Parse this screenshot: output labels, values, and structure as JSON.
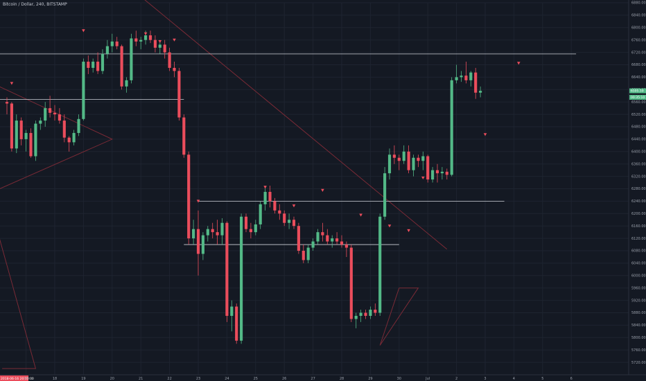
{
  "header": {
    "symbol_title": "Bitcoin / Dollar, 240, BITSTAMP"
  },
  "colors": {
    "background": "#141923",
    "up": "#53b987",
    "down": "#eb4d5c",
    "grid": "#1e2430",
    "hline": "#cfd3da",
    "trendline": "#7a2a36",
    "marker": "#eb4d5c",
    "axis_text": "#9aa0ab",
    "current_price_tag": "#53b987"
  },
  "chart_data": {
    "type": "candlestick",
    "title": "Bitcoin / Dollar, 240, BITSTAMP",
    "xlabel": "",
    "ylabel": "",
    "ylim": [
      5680,
      6880
    ],
    "grid": true,
    "x_ticks": [
      {
        "label": "2018-06-16 20:00:00",
        "index": -2,
        "highlight": true
      },
      {
        "label": "17",
        "index": 4
      },
      {
        "label": "18",
        "index": 10
      },
      {
        "label": "19",
        "index": 16
      },
      {
        "label": "20",
        "index": 22
      },
      {
        "label": "21",
        "index": 28
      },
      {
        "label": "22",
        "index": 34
      },
      {
        "label": "23",
        "index": 40
      },
      {
        "label": "24",
        "index": 46
      },
      {
        "label": "25",
        "index": 52
      },
      {
        "label": "26",
        "index": 58
      },
      {
        "label": "27",
        "index": 64
      },
      {
        "label": "28",
        "index": 70
      },
      {
        "label": "29",
        "index": 76
      },
      {
        "label": "30",
        "index": 82
      },
      {
        "label": "Jul",
        "index": 88
      },
      {
        "label": "2",
        "index": 94
      },
      {
        "label": "3",
        "index": 100
      },
      {
        "label": "4",
        "index": 106
      },
      {
        "label": "5",
        "index": 112
      },
      {
        "label": "6",
        "index": 118
      }
    ],
    "y_ticks": [
      6880,
      6840,
      6800,
      6760,
      6720,
      6680,
      6640,
      6600,
      6560,
      6520,
      6480,
      6440,
      6400,
      6360,
      6320,
      6280,
      6240,
      6200,
      6160,
      6120,
      6080,
      6040,
      6000,
      5960,
      5920,
      5880,
      5840,
      5800,
      5760,
      5720
    ],
    "current_price": {
      "label": "6595.59",
      "value": 6596,
      "secondary_label": "00:35:10",
      "secondary_value": 6575
    },
    "candles": [
      [
        6560,
        6575,
        6520,
        6555
      ],
      [
        6555,
        6560,
        6400,
        6410
      ],
      [
        6410,
        6520,
        6395,
        6500
      ],
      [
        6500,
        6510,
        6420,
        6440
      ],
      [
        6440,
        6470,
        6400,
        6460
      ],
      [
        6460,
        6475,
        6380,
        6385
      ],
      [
        6385,
        6500,
        6370,
        6490
      ],
      [
        6490,
        6510,
        6470,
        6500
      ],
      [
        6500,
        6560,
        6480,
        6540
      ],
      [
        6540,
        6580,
        6510,
        6525
      ],
      [
        6525,
        6550,
        6500,
        6520
      ],
      [
        6520,
        6540,
        6490,
        6500
      ],
      [
        6500,
        6520,
        6430,
        6445
      ],
      [
        6445,
        6450,
        6400,
        6430
      ],
      [
        6430,
        6470,
        6420,
        6460
      ],
      [
        6460,
        6520,
        6450,
        6505
      ],
      [
        6505,
        6700,
        6500,
        6690
      ],
      [
        6690,
        6710,
        6650,
        6670
      ],
      [
        6670,
        6700,
        6655,
        6690
      ],
      [
        6690,
        6720,
        6650,
        6660
      ],
      [
        6660,
        6730,
        6650,
        6715
      ],
      [
        6715,
        6760,
        6700,
        6740
      ],
      [
        6740,
        6780,
        6720,
        6755
      ],
      [
        6755,
        6770,
        6730,
        6740
      ],
      [
        6740,
        6745,
        6600,
        6610
      ],
      [
        6610,
        6640,
        6590,
        6630
      ],
      [
        6630,
        6780,
        6620,
        6765
      ],
      [
        6765,
        6790,
        6740,
        6755
      ],
      [
        6755,
        6770,
        6730,
        6760
      ],
      [
        6760,
        6790,
        6745,
        6775
      ],
      [
        6775,
        6790,
        6750,
        6760
      ],
      [
        6760,
        6775,
        6720,
        6735
      ],
      [
        6735,
        6760,
        6715,
        6745
      ],
      [
        6745,
        6760,
        6700,
        6720
      ],
      [
        6720,
        6735,
        6660,
        6670
      ],
      [
        6670,
        6690,
        6640,
        6660
      ],
      [
        6660,
        6670,
        6500,
        6510
      ],
      [
        6510,
        6520,
        6380,
        6390
      ],
      [
        6390,
        6400,
        6100,
        6120
      ],
      [
        6120,
        6180,
        6100,
        6150
      ],
      [
        6150,
        6210,
        6000,
        6070
      ],
      [
        6070,
        6140,
        6050,
        6130
      ],
      [
        6130,
        6160,
        6110,
        6150
      ],
      [
        6150,
        6170,
        6120,
        6140
      ],
      [
        6140,
        6180,
        6100,
        6130
      ],
      [
        6130,
        6185,
        6100,
        6170
      ],
      [
        6170,
        6175,
        5850,
        5870
      ],
      [
        5870,
        5920,
        5820,
        5900
      ],
      [
        5900,
        5910,
        5780,
        5790
      ],
      [
        5790,
        6200,
        5780,
        6190
      ],
      [
        6190,
        6200,
        6140,
        6150
      ],
      [
        6150,
        6170,
        6120,
        6140
      ],
      [
        6140,
        6180,
        6130,
        6165
      ],
      [
        6165,
        6240,
        6150,
        6230
      ],
      [
        6230,
        6290,
        6210,
        6270
      ],
      [
        6270,
        6290,
        6220,
        6240
      ],
      [
        6240,
        6250,
        6200,
        6210
      ],
      [
        6210,
        6230,
        6180,
        6200
      ],
      [
        6200,
        6210,
        6160,
        6170
      ],
      [
        6170,
        6200,
        6150,
        6180
      ],
      [
        6180,
        6190,
        6150,
        6160
      ],
      [
        6160,
        6170,
        6070,
        6080
      ],
      [
        6080,
        6100,
        6040,
        6050
      ],
      [
        6050,
        6100,
        6040,
        6090
      ],
      [
        6090,
        6120,
        6080,
        6110
      ],
      [
        6110,
        6150,
        6100,
        6140
      ],
      [
        6140,
        6170,
        6110,
        6130
      ],
      [
        6130,
        6150,
        6100,
        6110
      ],
      [
        6110,
        6130,
        6090,
        6120
      ],
      [
        6120,
        6140,
        6100,
        6110
      ],
      [
        6110,
        6130,
        6090,
        6100
      ],
      [
        6100,
        6110,
        6060,
        6090
      ],
      [
        6090,
        6100,
        5850,
        5860
      ],
      [
        5860,
        5880,
        5830,
        5870
      ],
      [
        5870,
        5890,
        5850,
        5880
      ],
      [
        5880,
        5890,
        5860,
        5870
      ],
      [
        5870,
        5900,
        5860,
        5890
      ],
      [
        5890,
        5910,
        5870,
        5880
      ],
      [
        5880,
        6200,
        5870,
        6190
      ],
      [
        6190,
        6350,
        6180,
        6330
      ],
      [
        6330,
        6410,
        6310,
        6390
      ],
      [
        6390,
        6420,
        6360,
        6380
      ],
      [
        6380,
        6390,
        6340,
        6370
      ],
      [
        6370,
        6420,
        6360,
        6400
      ],
      [
        6400,
        6420,
        6330,
        6340
      ],
      [
        6340,
        6390,
        6320,
        6380
      ],
      [
        6380,
        6390,
        6350,
        6370
      ],
      [
        6370,
        6400,
        6340,
        6385
      ],
      [
        6385,
        6390,
        6300,
        6310
      ],
      [
        6310,
        6350,
        6300,
        6340
      ],
      [
        6340,
        6360,
        6300,
        6330
      ],
      [
        6330,
        6350,
        6310,
        6335
      ],
      [
        6335,
        6345,
        6310,
        6325
      ],
      [
        6325,
        6640,
        6320,
        6630
      ],
      [
        6630,
        6680,
        6620,
        6640
      ],
      [
        6640,
        6660,
        6625,
        6645
      ],
      [
        6645,
        6690,
        6620,
        6630
      ],
      [
        6630,
        6660,
        6610,
        6655
      ],
      [
        6655,
        6670,
        6570,
        6590
      ],
      [
        6590,
        6610,
        6575,
        6596
      ]
    ],
    "horizontal_lines": [
      {
        "value": 6715,
        "from_index": -3,
        "to_index": 119
      },
      {
        "value": 6568,
        "from_index": -3,
        "to_index": 37
      },
      {
        "value": 6240,
        "from_index": 40,
        "to_index": 104
      },
      {
        "value": 6100,
        "from_index": 37,
        "to_index": 82
      }
    ],
    "down_markers": [
      {
        "index": 1,
        "value": 6620
      },
      {
        "index": 16,
        "value": 6790
      },
      {
        "index": 29,
        "value": 6780
      },
      {
        "index": 32,
        "value": 6755
      },
      {
        "index": 35,
        "value": 6760
      },
      {
        "index": 40,
        "value": 6240
      },
      {
        "index": 54,
        "value": 6285
      },
      {
        "index": 60,
        "value": 6225
      },
      {
        "index": 66,
        "value": 6275
      },
      {
        "index": 74,
        "value": 6195
      },
      {
        "index": 80,
        "value": 6160
      },
      {
        "index": 84,
        "value": 6145
      },
      {
        "index": 87,
        "value": 6315
      },
      {
        "index": 100,
        "value": 6455
      },
      {
        "index": 107,
        "value": 6685
      }
    ],
    "trendlines": [
      {
        "points": [
          [
            28,
            6900
          ],
          [
            92,
            6085
          ]
        ]
      },
      {
        "points": [
          [
            -3,
            6620
          ],
          [
            22,
            6440
          ],
          [
            -3,
            6270
          ]
        ]
      },
      {
        "points": [
          [
            -1,
            5700
          ],
          [
            6,
            5700
          ],
          [
            -3,
            6200
          ]
        ]
      },
      {
        "points": [
          [
            82,
            5960
          ],
          [
            86,
            5960
          ],
          [
            78,
            5775
          ],
          [
            82,
            5960
          ]
        ]
      }
    ]
  }
}
